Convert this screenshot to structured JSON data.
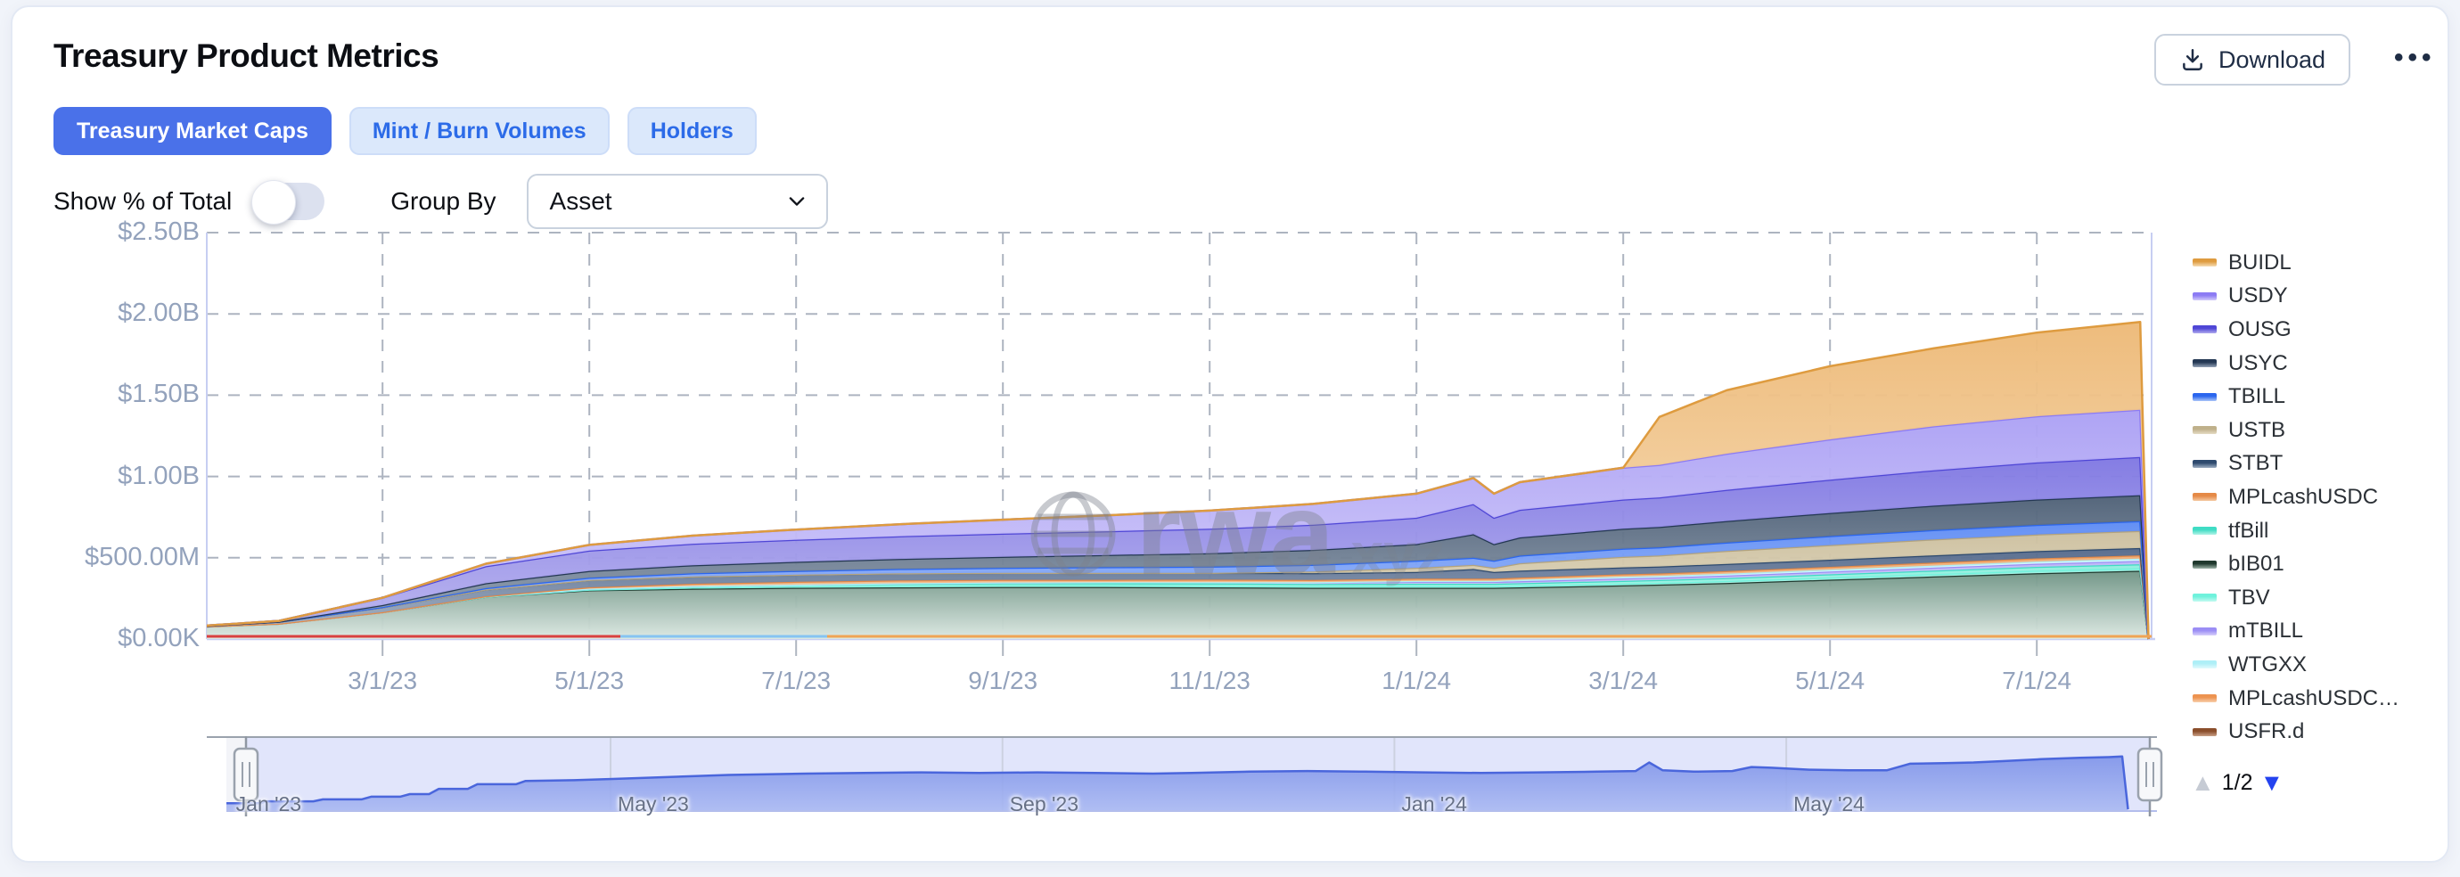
{
  "header": {
    "title": "Treasury Product Metrics",
    "download_label": "Download",
    "more_menu": "•••"
  },
  "tabs": [
    {
      "label": "Treasury Market Caps",
      "active": true
    },
    {
      "label": "Mint / Burn Volumes",
      "active": false
    },
    {
      "label": "Holders",
      "active": false
    }
  ],
  "controls": {
    "show_pct_label": "Show % of Total",
    "show_pct_on": false,
    "group_by_label": "Group By",
    "group_by_value": "Asset"
  },
  "watermark": {
    "brand": "rwa",
    "suffix": "xyz"
  },
  "legend": {
    "items": [
      {
        "label": "BUIDL",
        "line": "#DE9B3F",
        "fade": "#F6DDB4"
      },
      {
        "label": "USDY",
        "line": "#8C7BF4",
        "fade": "#D3CCFA"
      },
      {
        "label": "OUSG",
        "line": "#4F46D6",
        "fade": "#B0ABEE"
      },
      {
        "label": "USYC",
        "line": "#243853",
        "fade": "#93A2B6"
      },
      {
        "label": "TBILL",
        "line": "#2B66EE",
        "fade": "#A9C4F8"
      },
      {
        "label": "USTB",
        "line": "#BFB08A",
        "fade": "#E5DCC4"
      },
      {
        "label": "STBT",
        "line": "#2E4A6E",
        "fade": "#9FB0C4"
      },
      {
        "label": "MPLcashUSDC",
        "line": "#E58A47",
        "fade": "#F5C9A2"
      },
      {
        "label": "tfBill",
        "line": "#3FDCC4",
        "fade": "#B2F3E7"
      },
      {
        "label": "bIB01",
        "line": "#20392E",
        "fade": "#9FB5AA"
      },
      {
        "label": "TBV",
        "line": "#6FF2DC",
        "fade": "#C5FAF1"
      },
      {
        "label": "mTBILL",
        "line": "#9B8DF5",
        "fade": "#D7D0FA"
      },
      {
        "label": "WTGXX",
        "line": "#AEEFF7",
        "fade": "#E2FAFD"
      },
      {
        "label": "MPLcashUSDC…",
        "line": "#ED9350",
        "fade": "#F8CFAC"
      },
      {
        "label": "USFR.d",
        "line": "#8A4E2B",
        "fade": "#C9A086"
      }
    ],
    "pagination": {
      "current": "1/2",
      "up_enabled": false,
      "down_enabled": true,
      "up_color": "#c6cbd4",
      "down_color": "#2443ef"
    }
  },
  "chart_data": {
    "type": "area",
    "stacked": true,
    "title": "Treasury Product Metrics — Treasury Market Caps",
    "unit": "USD market cap (values in $M)",
    "ylim_musd": [
      0,
      2500
    ],
    "grid": true,
    "legend_position": "right",
    "style": {
      "grid": "#adb4c0",
      "axis": "#c7cef2",
      "tick": "#aeb5c0",
      "label": "#93a2bc"
    },
    "y_ticks": [
      {
        "label": "$2.50B",
        "value": 2500
      },
      {
        "label": "$2.00B",
        "value": 2000
      },
      {
        "label": "$1.50B",
        "value": 1500
      },
      {
        "label": "$1.00B",
        "value": 1000
      },
      {
        "label": "$500.00M",
        "value": 500
      },
      {
        "label": "$0.00K",
        "value": 0
      }
    ],
    "x_ticks": [
      {
        "label": "3/1/23",
        "month": 2
      },
      {
        "label": "5/1/23",
        "month": 4
      },
      {
        "label": "7/1/23",
        "month": 6
      },
      {
        "label": "9/1/23",
        "month": 8
      },
      {
        "label": "11/1/23",
        "month": 10
      },
      {
        "label": "1/1/24",
        "month": 12
      },
      {
        "label": "3/1/24",
        "month": 14
      },
      {
        "label": "5/1/24",
        "month": 16
      },
      {
        "label": "7/1/24",
        "month": 18
      }
    ],
    "x_months": [
      0,
      1,
      2,
      3,
      4,
      5,
      6,
      7,
      8,
      9,
      10,
      11,
      12,
      12.55,
      12.75,
      13,
      14,
      14.35,
      15,
      16,
      17,
      18,
      19
    ],
    "end_drop_month": 19.08,
    "series": [
      {
        "name": "bIB01",
        "line": "#20392E",
        "fill_top": "#6E9384",
        "fill_bottom": "#DCE8E2",
        "values": [
          70,
          95,
          165,
          260,
          300,
          310,
          315,
          318,
          320,
          320,
          318,
          315,
          315,
          315,
          315,
          318,
          330,
          335,
          345,
          365,
          385,
          405,
          420
        ]
      },
      {
        "name": "TBV",
        "line": "#6FF2DC",
        "fill_top": "#9FF5E6",
        "fill_bottom": "#D9FBF5",
        "values": [
          0,
          0,
          0,
          0,
          4,
          7,
          9,
          10,
          10,
          10,
          10,
          10,
          10,
          10,
          10,
          10,
          11,
          11,
          12,
          13,
          14,
          15,
          15
        ]
      },
      {
        "name": "tfBill",
        "line": "#3FDCC4",
        "fill_top": "#8EEEDD",
        "fill_bottom": "#CFF9F2",
        "values": [
          0,
          0,
          0,
          3,
          6,
          9,
          11,
          12,
          13,
          13,
          14,
          14,
          15,
          15,
          15,
          15,
          17,
          17,
          18,
          20,
          22,
          24,
          25
        ]
      },
      {
        "name": "mTBILL",
        "line": "#9B8DF5",
        "fill_top": "#C0B7F7",
        "fill_bottom": "#E4E0FC",
        "values": [
          0,
          0,
          0,
          0,
          0,
          0,
          0,
          3,
          5,
          6,
          8,
          10,
          12,
          12,
          12,
          13,
          15,
          15,
          16,
          17,
          18,
          19,
          20
        ]
      },
      {
        "name": "WTGXX",
        "line": "#AEEFF7",
        "fill_top": "#D4F7FB",
        "fill_bottom": "#EDFCFE",
        "values": [
          0,
          0,
          0,
          0,
          0,
          0,
          0,
          0,
          0,
          0,
          0,
          0,
          5,
          5,
          5,
          8,
          10,
          10,
          11,
          12,
          13,
          14,
          15
        ]
      },
      {
        "name": "MPLcashUSDC",
        "line": "#E58A47",
        "fill_top": "#F0AC74",
        "fill_bottom": "#F9DDC2",
        "values": [
          0,
          0,
          0,
          0,
          8,
          14,
          17,
          17,
          16,
          15,
          15,
          14,
          14,
          14,
          14,
          14,
          15,
          15,
          16,
          17,
          18,
          19,
          20
        ]
      },
      {
        "name": "STBT",
        "line": "#2E4A6E",
        "fill_top": "#53688A",
        "fill_bottom": "#AFBCCD",
        "values": [
          0,
          12,
          30,
          42,
          45,
          45,
          44,
          44,
          43,
          43,
          42,
          42,
          42,
          60,
          42,
          43,
          43,
          43,
          44,
          44,
          45,
          45,
          45
        ]
      },
      {
        "name": "USTB",
        "line": "#B3A37D",
        "fill_top": "#CCBF9E",
        "fill_bottom": "#E8E1CC",
        "values": [
          0,
          0,
          0,
          0,
          0,
          0,
          0,
          0,
          0,
          0,
          0,
          10,
          25,
          25,
          25,
          45,
          65,
          68,
          80,
          90,
          98,
          102,
          105
        ]
      },
      {
        "name": "TBILL",
        "line": "#2B66EE",
        "fill_top": "#5D8BF4",
        "fill_bottom": "#B6CCFA",
        "values": [
          0,
          0,
          2,
          8,
          14,
          19,
          23,
          27,
          31,
          35,
          38,
          41,
          44,
          44,
          44,
          47,
          50,
          50,
          52,
          55,
          57,
          59,
          60
        ]
      },
      {
        "name": "USYC",
        "line": "#243853",
        "fill_top": "#4E6076",
        "fill_bottom": "#9FACBD",
        "values": [
          0,
          0,
          12,
          30,
          42,
          50,
          56,
          62,
          68,
          75,
          83,
          92,
          102,
          145,
          102,
          112,
          122,
          125,
          132,
          142,
          150,
          156,
          160
        ]
      },
      {
        "name": "OUSG",
        "line": "#4F46D6",
        "fill_top": "#7F77E2",
        "fill_bottom": "#BDB8F0",
        "values": [
          0,
          5,
          45,
          105,
          125,
          132,
          136,
          139,
          142,
          146,
          150,
          155,
          162,
          185,
          162,
          170,
          180,
          182,
          192,
          205,
          218,
          228,
          235
        ]
      },
      {
        "name": "USDY",
        "line": "#8C7BF4",
        "fill_top": "#ABA0F4",
        "fill_bottom": "#D6D0FA",
        "values": [
          0,
          0,
          0,
          15,
          35,
          50,
          62,
          74,
          86,
          98,
          112,
          128,
          148,
          160,
          148,
          170,
          196,
          200,
          222,
          248,
          270,
          284,
          290
        ]
      },
      {
        "name": "BUIDL",
        "line": "#DE9B3F",
        "fill_top": "#EDB977",
        "fill_bottom": "#F7DFBC",
        "values": [
          0,
          0,
          0,
          0,
          0,
          0,
          0,
          0,
          0,
          0,
          0,
          0,
          0,
          0,
          0,
          0,
          0,
          295,
          390,
          450,
          480,
          515,
          540
        ]
      }
    ],
    "baseline_series": [
      {
        "name": "USFR.d",
        "color": "#D94040",
        "from_month": 0.0,
        "to_month": 4.3
      },
      {
        "name": "WTGXX-strip",
        "color": "#86C4F2",
        "from_month": 4.3,
        "to_month": 6.3
      },
      {
        "name": "MPLcashUSDC-2",
        "color": "#F0A455",
        "from_month": 6.3,
        "to_month": 19.4
      }
    ],
    "brush": {
      "line_color": "#4A66DC",
      "fill_top": "#7E93E9",
      "fill_bottom": "#AAB9F2",
      "selected_bg": "#E1E5FB",
      "unselected_bg": "#F3F4F8",
      "grid": "#CCD1E0",
      "topline": "#9AA2AD",
      "bottomline": "#B3BDEC",
      "handle_border": "#9AA2AD",
      "handle_fill": "#F7F8FA",
      "labels": [
        {
          "label": "Jan '23",
          "f": 0.004
        },
        {
          "label": "May '23",
          "f": 0.199
        },
        {
          "label": "Sep '23",
          "f": 0.402
        },
        {
          "label": "Jan '24",
          "f": 0.605
        },
        {
          "label": "May '24",
          "f": 0.808
        }
      ],
      "values": [
        [
          0,
          9
        ],
        [
          0.018,
          9
        ],
        [
          0.02,
          12
        ],
        [
          0.045,
          12
        ],
        [
          0.05,
          15
        ],
        [
          0.07,
          15
        ],
        [
          0.075,
          19
        ],
        [
          0.09,
          19
        ],
        [
          0.095,
          23
        ],
        [
          0.105,
          23
        ],
        [
          0.11,
          31
        ],
        [
          0.125,
          31
        ],
        [
          0.13,
          38
        ],
        [
          0.15,
          38
        ],
        [
          0.155,
          43
        ],
        [
          0.18,
          44
        ],
        [
          0.2,
          46
        ],
        [
          0.23,
          49
        ],
        [
          0.26,
          52
        ],
        [
          0.3,
          54
        ],
        [
          0.33,
          55
        ],
        [
          0.36,
          56
        ],
        [
          0.39,
          55
        ],
        [
          0.42,
          56
        ],
        [
          0.45,
          55
        ],
        [
          0.48,
          54
        ],
        [
          0.5,
          55
        ],
        [
          0.53,
          57
        ],
        [
          0.56,
          58
        ],
        [
          0.59,
          57
        ],
        [
          0.62,
          56
        ],
        [
          0.65,
          55
        ],
        [
          0.68,
          56
        ],
        [
          0.71,
          57
        ],
        [
          0.73,
          58
        ],
        [
          0.737,
          71
        ],
        [
          0.744,
          59
        ],
        [
          0.76,
          57
        ],
        [
          0.78,
          58
        ],
        [
          0.79,
          64
        ],
        [
          0.8,
          63
        ],
        [
          0.82,
          60
        ],
        [
          0.84,
          59
        ],
        [
          0.86,
          59
        ],
        [
          0.872,
          69
        ],
        [
          0.89,
          70
        ],
        [
          0.905,
          71
        ],
        [
          0.92,
          73
        ],
        [
          0.94,
          76
        ],
        [
          0.96,
          78
        ],
        [
          0.975,
          79
        ],
        [
          0.982,
          80
        ],
        [
          0.985,
          0
        ]
      ]
    }
  }
}
